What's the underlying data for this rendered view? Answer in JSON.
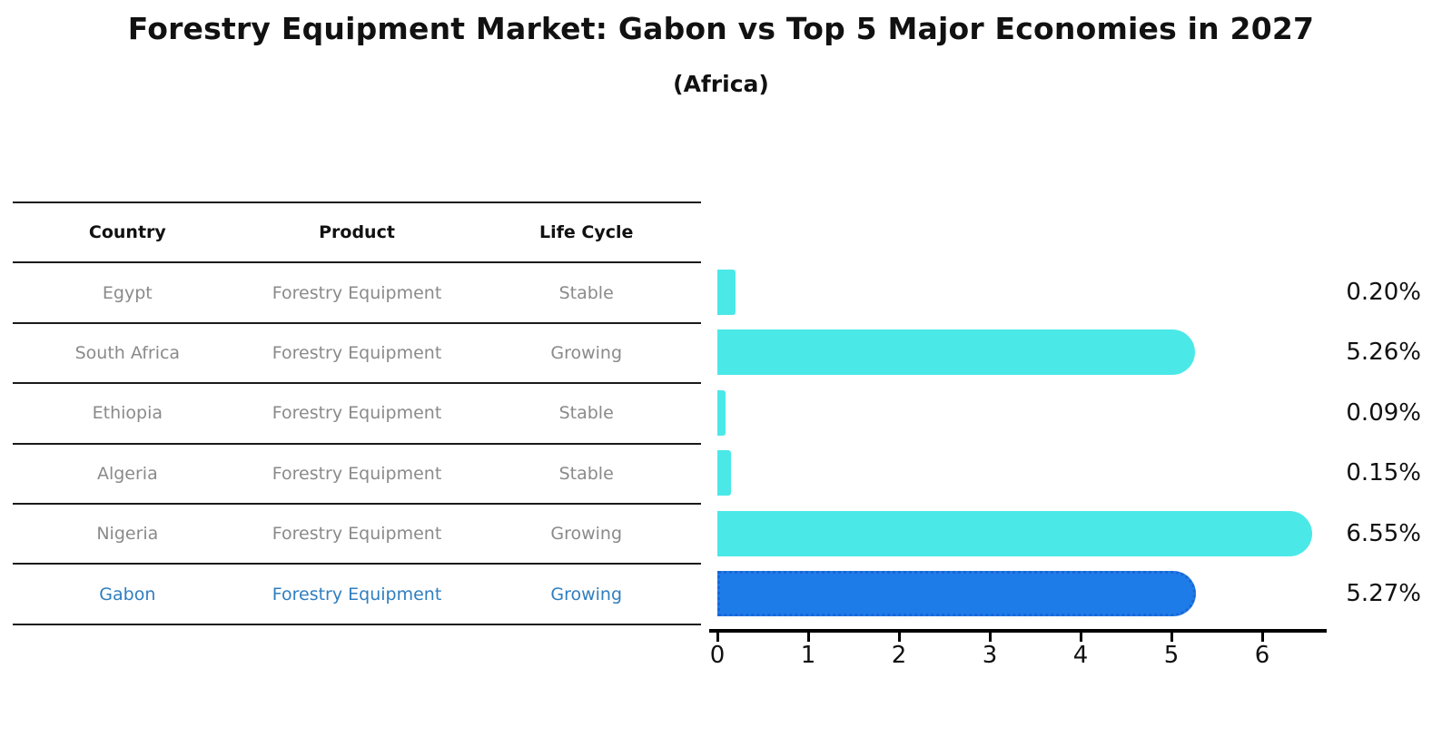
{
  "title": "Forestry Equipment Market: Gabon vs Top 5 Major Economies in 2027",
  "subtitle": "(Africa)",
  "colors": {
    "bar_default": "#4be8e8",
    "bar_highlight": "#1e7ce8",
    "bar_highlight_border": "#1a66d6",
    "highlight_text": "#2e7ec0",
    "row_text": "#8a8a8a",
    "header_text": "#111111",
    "axis": "#000000",
    "background": "#ffffff"
  },
  "table": {
    "headers": [
      "Country",
      "Product",
      "Life Cycle"
    ],
    "rows": [
      {
        "country": "Egypt",
        "product": "Forestry Equipment",
        "life_cycle": "Stable",
        "highlight": false
      },
      {
        "country": "South Africa",
        "product": "Forestry Equipment",
        "life_cycle": "Growing",
        "highlight": false
      },
      {
        "country": "Ethiopia",
        "product": "Forestry Equipment",
        "life_cycle": "Stable",
        "highlight": false
      },
      {
        "country": "Algeria",
        "product": "Forestry Equipment",
        "life_cycle": "Stable",
        "highlight": false
      },
      {
        "country": "Nigeria",
        "product": "Forestry Equipment",
        "life_cycle": "Growing",
        "highlight": false
      },
      {
        "country": "Gabon",
        "product": "Forestry Equipment",
        "life_cycle": "Growing",
        "highlight": true
      }
    ]
  },
  "chart_data": {
    "type": "bar",
    "orientation": "horizontal",
    "title": "Forestry Equipment Market: Gabon vs Top 5 Major Economies in 2027 (Africa)",
    "categories": [
      "Egypt",
      "South Africa",
      "Ethiopia",
      "Algeria",
      "Nigeria",
      "Gabon"
    ],
    "values": [
      0.2,
      5.26,
      0.09,
      0.15,
      6.55,
      5.27
    ],
    "value_labels": [
      "0.20%",
      "5.26%",
      "0.09%",
      "0.15%",
      "6.55%",
      "5.27%"
    ],
    "highlight_category": "Gabon",
    "xlabel": "",
    "ylabel": "",
    "xticks": [
      "0",
      "1",
      "2",
      "3",
      "4",
      "5",
      "6"
    ],
    "xlim": [
      0,
      6.8
    ],
    "grid": false,
    "legend": "none"
  }
}
